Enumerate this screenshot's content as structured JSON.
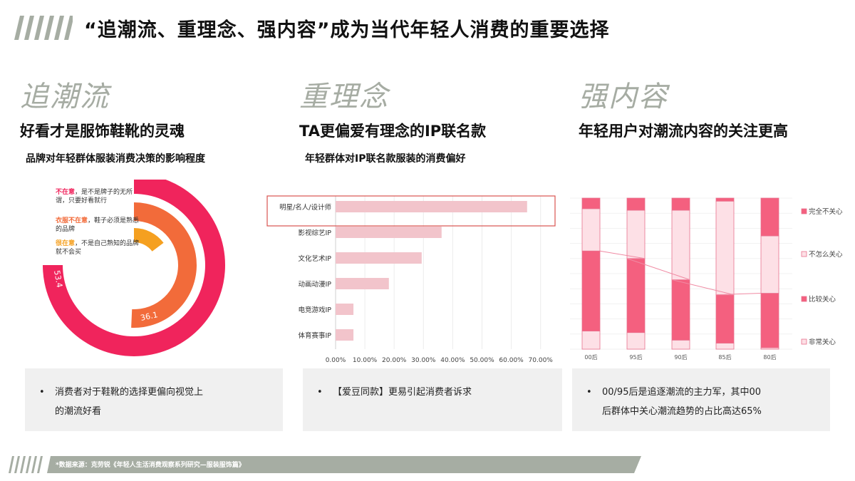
{
  "header": {
    "title": "“追潮流、重理念、强内容”成为当代年轻人消费的重要选择",
    "stripe_color": "#a6ada3"
  },
  "columns": [
    {
      "keyword": "追潮流",
      "headline": "好看才是服饰鞋靴的灵魂",
      "chart_subtitle": "品牌对年轻群体服装消费决策的影响程度",
      "note_bullet": "•",
      "note_lines": [
        "消费者对于鞋靴的选择更偏向视觉上",
        "的潮流好看"
      ]
    },
    {
      "keyword": "重理念",
      "headline": "TA更偏爱有理念的IP联名款",
      "chart_subtitle": "年轻群体对IP联名款服装的消费偏好",
      "note_bullet": "•",
      "note_lines": [
        "【爱豆同款】更易引起消费者诉求"
      ]
    },
    {
      "keyword": "强内容",
      "headline": "年轻用户对潮流内容的关注更高",
      "chart_subtitle": "",
      "note_bullet": "•",
      "note_lines": [
        "00/95后是追逐潮流的主力军，其中00",
        "后群体中关心潮流趋势的占比高达65%"
      ]
    }
  ],
  "radial_legend": [
    {
      "highlight": "不在意",
      "rest": "，是不是牌子的无所谓，只要好看就行",
      "color": "#f0245c"
    },
    {
      "highlight": "衣服不在意",
      "rest": "，鞋子必须是熟悉的品牌",
      "color": "#f26b3a"
    },
    {
      "highlight": "很在意",
      "rest": "，不是自己熟知的品牌就不会买",
      "color": "#f5a020"
    }
  ],
  "footer": {
    "source": "*数据来源：克劳锐《年轻人生活消费观察系列研究—服装服饰篇》"
  },
  "colors": {
    "accent_pink": "#f0245c",
    "accent_orange": "#f26b3a",
    "accent_yellow": "#f5a020",
    "bar_pink": "#f2c4cb",
    "stack_dark": "#f4607f",
    "stack_light": "#fde0e6",
    "highlight_box": "#d9534f",
    "gray_stripe": "#a6ada3",
    "note_bg": "#f0f0f0"
  },
  "chart_data": [
    {
      "type": "pie",
      "subtype": "radial-bar",
      "title": "品牌对年轻群体服装消费决策的影响程度",
      "categories": [
        "不在意，是不是牌子的无所谓，只要好看就行",
        "衣服不在意，鞋子必须是熟悉的品牌",
        "很在意，不是自己熟知的品牌就不会买"
      ],
      "values": [
        53.4,
        36.1,
        10.5
      ],
      "unit": "%",
      "colors": [
        "#f0245c",
        "#f26b3a",
        "#f5a020"
      ]
    },
    {
      "type": "bar",
      "orientation": "horizontal",
      "title": "年轻群体对IP联名款服装的消费偏好",
      "categories": [
        "明星/名人/设计师",
        "影视综艺IP",
        "文化艺术IP",
        "动画动漫IP",
        "电竞游戏IP",
        "体育赛事IP"
      ],
      "values": [
        65.4,
        36.2,
        29.4,
        18.2,
        6.1,
        6.1
      ],
      "xlabel": "",
      "ylabel": "",
      "xlim": [
        0,
        70
      ],
      "x_ticks": [
        "0.00%",
        "10.00%",
        "20.00%",
        "30.00%",
        "40.00%",
        "50.00%",
        "60.00%",
        "70.00%"
      ],
      "grid": true,
      "highlighted_category": "明星/名人/设计师"
    },
    {
      "type": "bar",
      "subtype": "stacked-100",
      "title": "年轻用户对潮流内容的关注",
      "categories": [
        "00后",
        "95后",
        "90后",
        "85后",
        "80后"
      ],
      "series": [
        {
          "name": "非常关心",
          "values": [
            12,
            11,
            6,
            4,
            1
          ]
        },
        {
          "name": "比较关心",
          "values": [
            53,
            49,
            40,
            32,
            36
          ]
        },
        {
          "name": "不怎么关心",
          "values": [
            28,
            32,
            46,
            62,
            38
          ]
        },
        {
          "name": "完全不关心",
          "values": [
            7,
            8,
            8,
            2,
            25
          ]
        }
      ],
      "legend": [
        "完全不关心",
        "不怎么关心",
        "比较关心",
        "非常关心"
      ],
      "legend_position": "right",
      "trend_line": "connects top of 比较关心 segment",
      "ylim": [
        0,
        100
      ],
      "grid": true
    }
  ]
}
